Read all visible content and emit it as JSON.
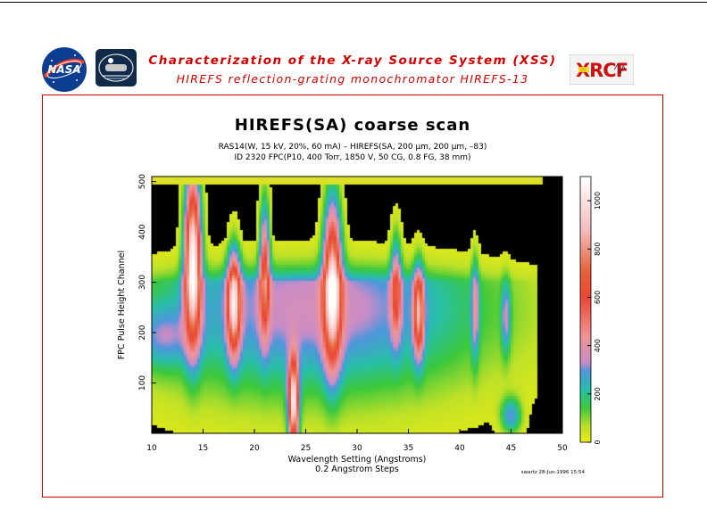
{
  "header": {
    "title_line1": "Characterization of the X-ray Source System (XSS)",
    "title_line2": "HIREFS reflection-grating monochromator  HIREFS-13",
    "logos": {
      "left_logo_text": "NASA",
      "right_logo_text": "XRCF"
    }
  },
  "colors": {
    "accent": "#d40000",
    "frame": "#d40000"
  },
  "chart_data": {
    "type": "heatmap",
    "title": "HIREFS(SA) coarse scan",
    "subtitle1": "RAS14(W, 15 kV, 20%, 60 mA) – HIREFS(SA, 200 μm, 200 μm, –83)",
    "subtitle2": "ID 2320 FPC(P10, 400 Torr, 1850 V, 50 CG, 0.8 FG, 38 mm)",
    "xlabel": "Wavelength Setting (Angstroms)",
    "xlabel2": "0.2 Angstrom Steps",
    "ylabel": "FPC Pulse Height Channel",
    "xlim": [
      10,
      50
    ],
    "ylim": [
      0,
      510
    ],
    "x_ticks": [
      "10",
      "15",
      "20",
      "25",
      "30",
      "35",
      "40",
      "45",
      "50"
    ],
    "y_ticks": [
      "100",
      "200",
      "300",
      "400",
      "500"
    ],
    "colorbar": {
      "range": [
        0,
        1100
      ],
      "ticks": [
        "0",
        "200",
        "400",
        "600",
        "800",
        "1000"
      ]
    },
    "footnote": "swartz 28-Jun-1996 15:54",
    "peaks": [
      {
        "x": 14.0,
        "y": 350,
        "sigma_x": 0.55,
        "sigma_y": 110,
        "value": 1050
      },
      {
        "x": 18.0,
        "y": 260,
        "sigma_x": 0.45,
        "sigma_y": 70,
        "value": 780
      },
      {
        "x": 21.0,
        "y": 330,
        "sigma_x": 0.35,
        "sigma_y": 90,
        "value": 560
      },
      {
        "x": 23.8,
        "y": 60,
        "sigma_x": 0.35,
        "sigma_y": 60,
        "value": 950
      },
      {
        "x": 27.6,
        "y": 300,
        "sigma_x": 0.6,
        "sigma_y": 110,
        "value": 880
      },
      {
        "x": 33.8,
        "y": 290,
        "sigma_x": 0.35,
        "sigma_y": 70,
        "value": 420
      },
      {
        "x": 36.0,
        "y": 240,
        "sigma_x": 0.35,
        "sigma_y": 60,
        "value": 640
      },
      {
        "x": 41.5,
        "y": 250,
        "sigma_x": 0.25,
        "sigma_y": 70,
        "value": 300
      },
      {
        "x": 44.5,
        "y": 230,
        "sigma_x": 0.3,
        "sigma_y": 50,
        "value": 260
      },
      {
        "x": 45.0,
        "y": 35,
        "sigma_x": 0.7,
        "sigma_y": 25,
        "value": 280
      }
    ]
  }
}
